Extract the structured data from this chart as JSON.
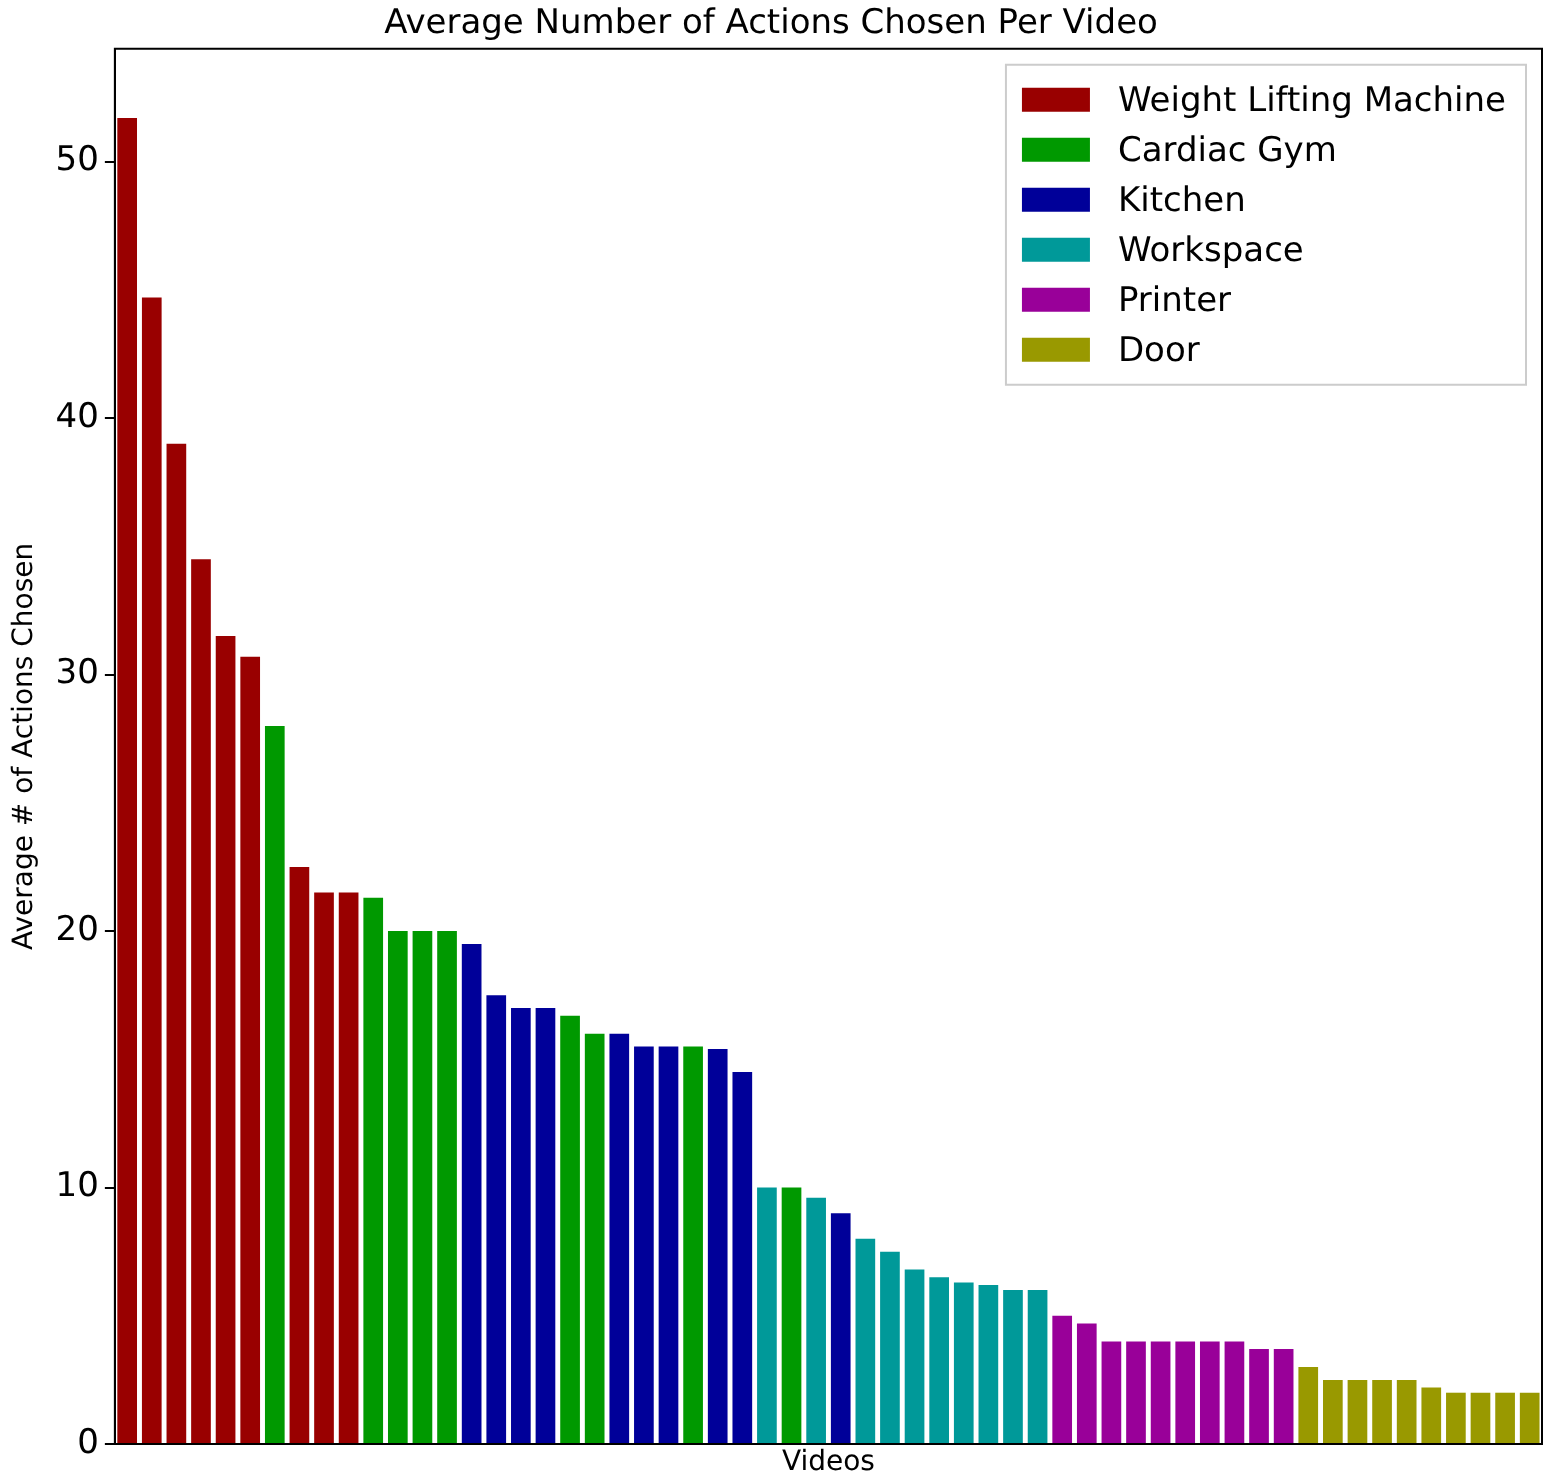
{
  "chart_data": {
    "type": "bar",
    "title": "Average Number of Actions Chosen Per Video",
    "xlabel": "Videos",
    "ylabel": "Average # of Actions Chosen",
    "categories": [
      null,
      null,
      null,
      null,
      null,
      null,
      null,
      null,
      null,
      null,
      null,
      null,
      null,
      null,
      null,
      null,
      null,
      null,
      null,
      null,
      null,
      null,
      null,
      null,
      null,
      null,
      null,
      null,
      null,
      null,
      null,
      null,
      null,
      null,
      null,
      null,
      null,
      null,
      null,
      null,
      null,
      null,
      null,
      null,
      null,
      null,
      null,
      null,
      null,
      null,
      null,
      null,
      null,
      null,
      null,
      null,
      null,
      null
    ],
    "series": [
      {
        "name": "Weight Lifting Machine",
        "color": "#990000",
        "values": [
          51.7,
          44.7,
          39,
          34.5,
          31.5,
          30.7,
          null,
          22.5,
          21.5,
          21.5,
          null,
          null,
          null,
          null,
          null,
          null,
          null,
          null,
          null,
          null,
          null,
          null,
          null,
          null,
          null,
          null,
          null,
          null,
          null,
          null,
          null,
          null,
          null,
          null,
          null,
          null,
          null,
          null,
          null,
          null,
          null,
          null,
          null,
          null,
          null,
          null,
          null,
          null,
          null,
          null,
          null,
          null,
          null,
          null,
          null,
          null,
          null,
          null
        ]
      },
      {
        "name": "Cardiac Gym",
        "color": "#009900",
        "values": [
          null,
          null,
          null,
          null,
          null,
          null,
          28,
          null,
          null,
          null,
          21.3,
          20,
          20,
          20,
          null,
          null,
          null,
          null,
          16.7,
          16,
          null,
          null,
          null,
          15.5,
          null,
          null,
          null,
          10,
          null,
          null,
          null,
          null,
          null,
          null,
          null,
          null,
          null,
          null,
          null,
          null,
          null,
          null,
          null,
          null,
          null,
          null,
          null,
          null,
          null,
          null,
          null,
          null,
          null,
          null,
          null,
          null,
          null,
          null
        ]
      },
      {
        "name": "Kitchen",
        "color": "#000099",
        "values": [
          null,
          null,
          null,
          null,
          null,
          null,
          null,
          null,
          null,
          null,
          null,
          null,
          null,
          null,
          19.5,
          17.5,
          17,
          17,
          null,
          null,
          16,
          15.5,
          15.5,
          null,
          15.4,
          14.5,
          null,
          null,
          null,
          9,
          null,
          null,
          null,
          null,
          null,
          null,
          null,
          null,
          null,
          null,
          null,
          null,
          null,
          null,
          null,
          null,
          null,
          null,
          null,
          null,
          null,
          null,
          null,
          null,
          null,
          null,
          null,
          null
        ]
      },
      {
        "name": "Workspace",
        "color": "#009999",
        "values": [
          null,
          null,
          null,
          null,
          null,
          null,
          null,
          null,
          null,
          null,
          null,
          null,
          null,
          null,
          null,
          null,
          null,
          null,
          null,
          null,
          null,
          null,
          null,
          null,
          null,
          null,
          10,
          null,
          9.6,
          null,
          8,
          7.5,
          6.8,
          6.5,
          6.3,
          6.2,
          6,
          6,
          null,
          null,
          null,
          null,
          null,
          null,
          null,
          null,
          null,
          null,
          null,
          null,
          null,
          null,
          null,
          null,
          null,
          null,
          null,
          null
        ]
      },
      {
        "name": "Printer",
        "color": "#990099",
        "values": [
          null,
          null,
          null,
          null,
          null,
          null,
          null,
          null,
          null,
          null,
          null,
          null,
          null,
          null,
          null,
          null,
          null,
          null,
          null,
          null,
          null,
          null,
          null,
          null,
          null,
          null,
          null,
          null,
          null,
          null,
          null,
          null,
          null,
          null,
          null,
          null,
          null,
          null,
          5,
          4.7,
          4,
          4,
          4,
          4,
          4,
          4,
          3.7,
          3.7,
          null,
          null,
          null,
          null,
          null,
          null,
          null,
          null,
          null,
          null
        ]
      },
      {
        "name": "Door",
        "color": "#999900",
        "values": [
          null,
          null,
          null,
          null,
          null,
          null,
          null,
          null,
          null,
          null,
          null,
          null,
          null,
          null,
          null,
          null,
          null,
          null,
          null,
          null,
          null,
          null,
          null,
          null,
          null,
          null,
          null,
          null,
          null,
          null,
          null,
          null,
          null,
          null,
          null,
          null,
          null,
          null,
          null,
          null,
          null,
          null,
          null,
          null,
          null,
          null,
          null,
          null,
          3,
          2.5,
          2.5,
          2.5,
          2.5,
          2.2,
          2,
          2,
          2,
          2
        ]
      }
    ],
    "stacked": true,
    "ylim": [
      0,
      54.4
    ],
    "yticks": [
      0,
      10,
      20,
      30,
      40,
      50
    ],
    "grid": false,
    "legend": "top right"
  }
}
